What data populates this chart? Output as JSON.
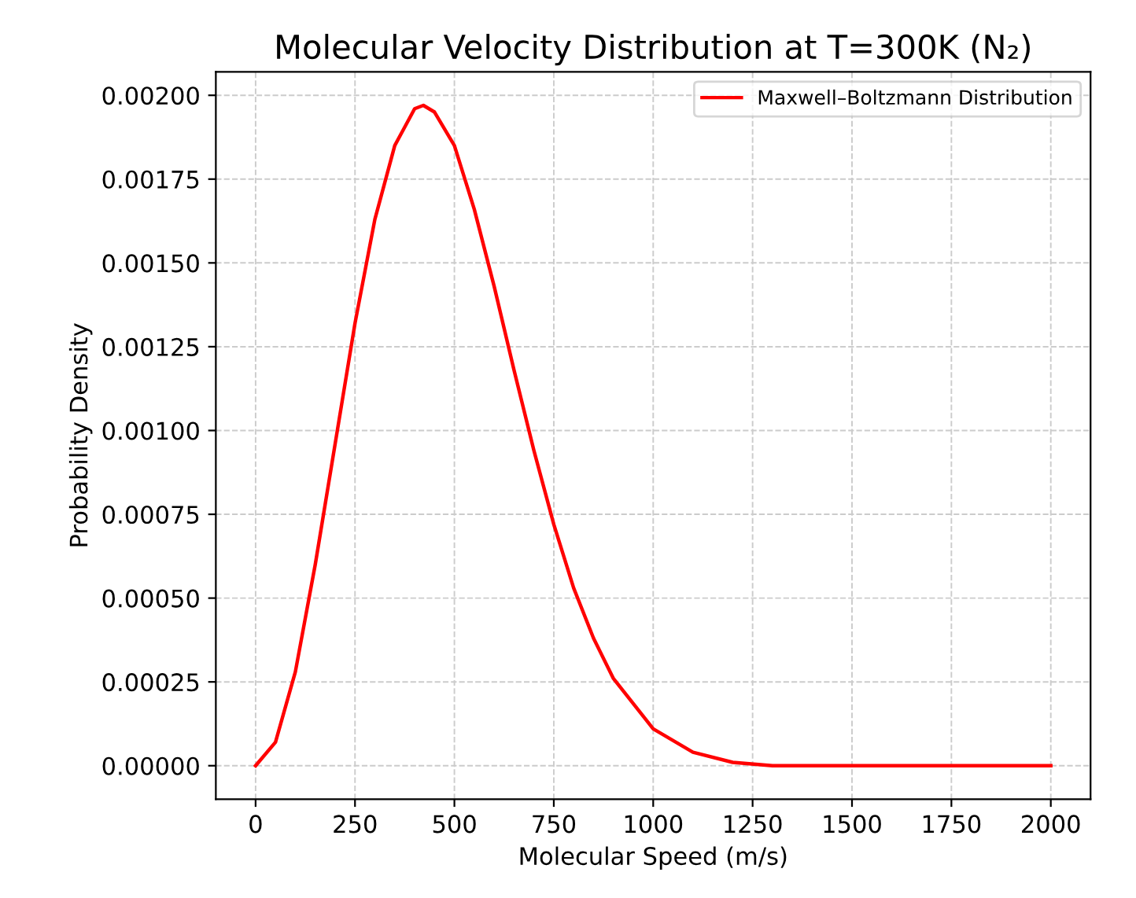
{
  "chart_data": {
    "type": "line",
    "title": "Molecular Velocity Distribution at T=300K (N₂)",
    "xlabel": "Molecular Speed (m/s)",
    "ylabel": "Probability Density",
    "series": [
      {
        "name": "Maxwell–Boltzmann Distribution",
        "color": "#ff0000",
        "x": [
          0,
          50,
          100,
          150,
          200,
          250,
          300,
          350,
          400,
          422,
          450,
          500,
          550,
          600,
          650,
          700,
          750,
          800,
          850,
          900,
          1000,
          1100,
          1200,
          1300,
          1500,
          1750,
          2000
        ],
        "values": [
          0,
          7e-05,
          0.00028,
          0.0006,
          0.00096,
          0.00132,
          0.00163,
          0.00185,
          0.00196,
          0.00197,
          0.00195,
          0.00185,
          0.00166,
          0.00143,
          0.00118,
          0.00094,
          0.00072,
          0.00053,
          0.00038,
          0.00026,
          0.00011,
          4e-05,
          1e-05,
          0,
          0,
          0,
          0
        ]
      }
    ],
    "xlim": [
      -100,
      2100
    ],
    "ylim": [
      -0.0001,
      0.00207
    ],
    "xticks": [
      0,
      250,
      500,
      750,
      1000,
      1250,
      1500,
      1750,
      2000
    ],
    "yticks": [
      {
        "value": 0,
        "label": "0.00000"
      },
      {
        "value": 0.00025,
        "label": "0.00025"
      },
      {
        "value": 0.0005,
        "label": "0.00050"
      },
      {
        "value": 0.00075,
        "label": "0.00075"
      },
      {
        "value": 0.001,
        "label": "0.00100"
      },
      {
        "value": 0.00125,
        "label": "0.00125"
      },
      {
        "value": 0.0015,
        "label": "0.00150"
      },
      {
        "value": 0.00175,
        "label": "0.00175"
      },
      {
        "value": 0.002,
        "label": "0.00200"
      }
    ],
    "grid": true,
    "legend": "top right",
    "line_style": "solid",
    "marker": "none"
  }
}
